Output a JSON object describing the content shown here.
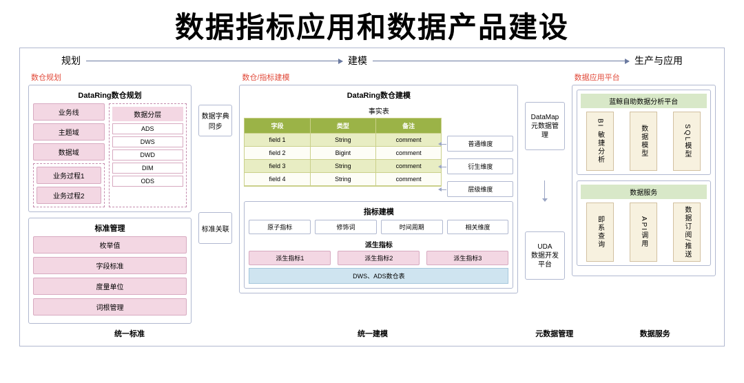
{
  "colors": {
    "frame_border": "#b0b8d0",
    "accent_red": "#e14a3a",
    "pink_bg": "#f3d7e3",
    "pink_border": "#d7a9c0",
    "green_header": "#9bb347",
    "green_row_alt": "#e8edc3",
    "blue_box": "#cfe4f0",
    "tan_bg": "#f7f1df",
    "light_green": "#d8e8c8",
    "arrow": "#6b7aa0"
  },
  "title": "数据指标应用和数据产品建设",
  "phases": {
    "p1": "规划",
    "p2": "建模",
    "p3": "生产与应用"
  },
  "left": {
    "red_label": "数仓规划",
    "plan_title": "DataRing数仓规划",
    "biz": [
      "业务线",
      "主题域",
      "数据域"
    ],
    "proc": [
      "业务过程1",
      "业务过程2"
    ],
    "layer_head": "数据分层",
    "layers": [
      "ADS",
      "DWS",
      "DWD",
      "DIM",
      "ODS"
    ],
    "std_title": "标准管理",
    "std_items": [
      "枚举值",
      "字段标准",
      "度量单位",
      "词根管理"
    ]
  },
  "dict": {
    "box1": "数据字典同步",
    "box2": "标准关联"
  },
  "mid": {
    "red_label": "数仓/指标建模",
    "title": "DataRing数仓建模",
    "fact_label": "事实表",
    "table": {
      "headers": [
        "字段",
        "类型",
        "备注"
      ],
      "rows": [
        [
          "field 1",
          "String",
          "comment"
        ],
        [
          "field 2",
          "Bigint",
          "comment"
        ],
        [
          "field 3",
          "String",
          "comment"
        ],
        [
          "field 4",
          "String",
          "comment"
        ]
      ]
    },
    "dims": [
      "普通维度",
      "衍生维度",
      "层级维度"
    ],
    "metric_title": "指标建模",
    "metric_row": [
      "原子指标",
      "修饰词",
      "时间周期",
      "相关维度"
    ],
    "deriv_title": "派生指标",
    "deriv_items": [
      "派生指标1",
      "派生指标2",
      "派生指标3"
    ],
    "dws_box": "DWS、ADS数仓表"
  },
  "meta": {
    "box1": "DataMap\n元数据管理",
    "box2": "UDA\n数据开发平台"
  },
  "right": {
    "red_label": "数据应用平台",
    "section1_head": "蓝鲸自助数据分析平台",
    "section1_items": [
      "BI 敏捷分析",
      "数据模型",
      "SQL模型"
    ],
    "section2_head": "数据服务",
    "section2_items": [
      "即系查询",
      "API调用",
      "数据订阅/推送"
    ]
  },
  "bottom": {
    "l1": "统一标准",
    "l2": "统一建模",
    "l3": "元数据管理",
    "l4": "数据服务"
  }
}
